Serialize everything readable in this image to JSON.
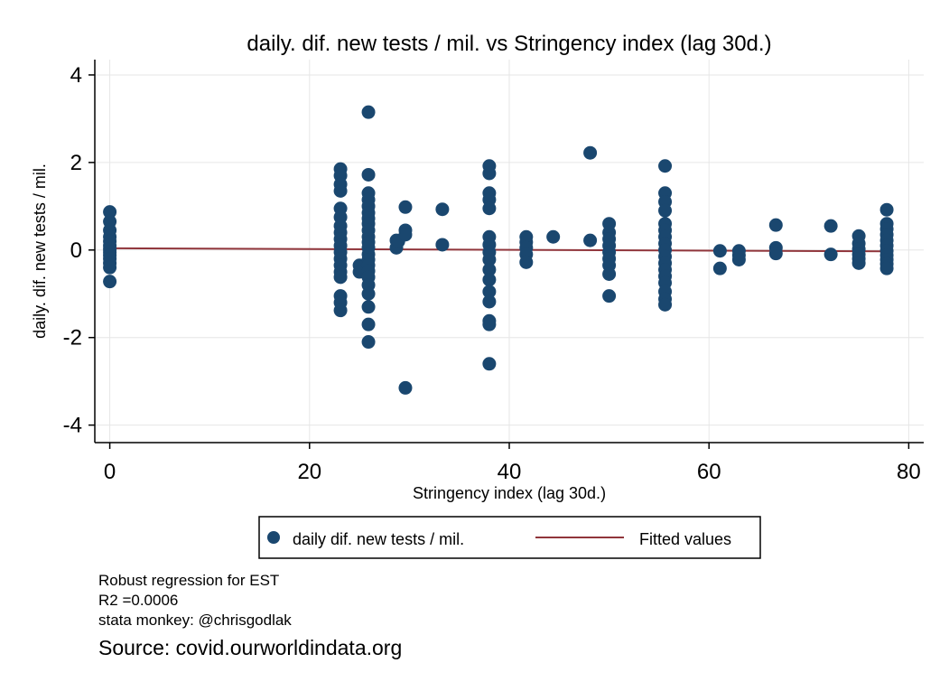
{
  "chart_data": {
    "type": "scatter",
    "title": "daily. dif. new tests / mil. vs Stringency index (lag 30d.)",
    "xlabel": "Stringency index (lag 30d.)",
    "ylabel": "daily. dif. new tests / mil.",
    "xlim": [
      -1.5,
      81.5
    ],
    "ylim": [
      -4.4,
      4.35
    ],
    "xticks": [
      0,
      20,
      40,
      60,
      80
    ],
    "yticks": [
      -4,
      -2,
      0,
      2,
      4
    ],
    "grid": true,
    "legend_position": "bottom",
    "colors": {
      "points": "#1a476f",
      "fit": "#90353b",
      "grid": "#e6e6e6"
    },
    "series": [
      {
        "name": "daily dif. new tests / mil.",
        "kind": "scatter",
        "points": [
          [
            0,
            0.87
          ],
          [
            0,
            0.65
          ],
          [
            0,
            0.45
          ],
          [
            0,
            0.3
          ],
          [
            0,
            0.2
          ],
          [
            0,
            0.1
          ],
          [
            0,
            0.02
          ],
          [
            0,
            -0.05
          ],
          [
            0,
            -0.12
          ],
          [
            0,
            -0.2
          ],
          [
            0,
            -0.3
          ],
          [
            0,
            -0.4
          ],
          [
            0,
            -0.72
          ],
          [
            23.1,
            1.85
          ],
          [
            23.1,
            1.7
          ],
          [
            23.1,
            1.5
          ],
          [
            23.1,
            1.35
          ],
          [
            23.1,
            0.95
          ],
          [
            23.1,
            0.75
          ],
          [
            23.1,
            0.55
          ],
          [
            23.1,
            0.4
          ],
          [
            23.1,
            0.25
          ],
          [
            23.1,
            0.1
          ],
          [
            23.1,
            -0.05
          ],
          [
            23.1,
            -0.2
          ],
          [
            23.1,
            -0.35
          ],
          [
            23.1,
            -0.5
          ],
          [
            23.1,
            -0.62
          ],
          [
            23.1,
            -1.05
          ],
          [
            23.1,
            -1.2
          ],
          [
            23.1,
            -1.38
          ],
          [
            25,
            -0.35
          ],
          [
            25,
            -0.5
          ],
          [
            25.9,
            3.15
          ],
          [
            25.9,
            1.72
          ],
          [
            25.9,
            1.3
          ],
          [
            25.9,
            1.15
          ],
          [
            25.9,
            1.0
          ],
          [
            25.9,
            0.85
          ],
          [
            25.9,
            0.72
          ],
          [
            25.9,
            0.6
          ],
          [
            25.9,
            0.45
          ],
          [
            25.9,
            0.3
          ],
          [
            25.9,
            0.18
          ],
          [
            25.9,
            0.05
          ],
          [
            25.9,
            -0.1
          ],
          [
            25.9,
            -0.22
          ],
          [
            25.9,
            -0.35
          ],
          [
            25.9,
            -0.48
          ],
          [
            25.9,
            -0.62
          ],
          [
            25.9,
            -0.8
          ],
          [
            25.9,
            -1.0
          ],
          [
            25.9,
            -1.3
          ],
          [
            25.9,
            -1.7
          ],
          [
            25.9,
            -2.1
          ],
          [
            28.7,
            0.22
          ],
          [
            28.7,
            0.05
          ],
          [
            28.9,
            0.2
          ],
          [
            29.6,
            0.98
          ],
          [
            29.6,
            0.45
          ],
          [
            29.6,
            0.35
          ],
          [
            29.6,
            -3.15
          ],
          [
            33.3,
            0.93
          ],
          [
            33.3,
            0.12
          ],
          [
            38,
            1.92
          ],
          [
            38,
            1.75
          ],
          [
            38,
            1.3
          ],
          [
            38,
            1.15
          ],
          [
            38,
            0.95
          ],
          [
            38,
            0.3
          ],
          [
            38,
            0.12
          ],
          [
            38,
            -0.05
          ],
          [
            38,
            -0.22
          ],
          [
            38,
            -0.45
          ],
          [
            38,
            -0.68
          ],
          [
            38,
            -0.95
          ],
          [
            38,
            -1.18
          ],
          [
            38,
            -1.62
          ],
          [
            38,
            -1.7
          ],
          [
            38,
            -2.6
          ],
          [
            41.7,
            0.3
          ],
          [
            41.7,
            0.18
          ],
          [
            41.7,
            0.05
          ],
          [
            41.7,
            -0.1
          ],
          [
            41.7,
            -0.28
          ],
          [
            44.4,
            0.3
          ],
          [
            48.1,
            2.22
          ],
          [
            48.1,
            0.22
          ],
          [
            50,
            0.6
          ],
          [
            50,
            0.4
          ],
          [
            50,
            0.25
          ],
          [
            50,
            0.1
          ],
          [
            50,
            -0.05
          ],
          [
            50,
            -0.2
          ],
          [
            50,
            -0.35
          ],
          [
            50,
            -0.55
          ],
          [
            50,
            -1.05
          ],
          [
            55.6,
            1.92
          ],
          [
            55.6,
            1.3
          ],
          [
            55.6,
            1.1
          ],
          [
            55.6,
            0.9
          ],
          [
            55.6,
            0.6
          ],
          [
            55.6,
            0.45
          ],
          [
            55.6,
            0.3
          ],
          [
            55.6,
            0.15
          ],
          [
            55.6,
            0.0
          ],
          [
            55.6,
            -0.15
          ],
          [
            55.6,
            -0.3
          ],
          [
            55.6,
            -0.45
          ],
          [
            55.6,
            -0.6
          ],
          [
            55.6,
            -0.75
          ],
          [
            55.6,
            -0.95
          ],
          [
            55.6,
            -1.12
          ],
          [
            55.6,
            -1.25
          ],
          [
            61.1,
            -0.02
          ],
          [
            61.1,
            -0.42
          ],
          [
            63,
            -0.02
          ],
          [
            63,
            -0.12
          ],
          [
            63,
            -0.22
          ],
          [
            66.7,
            0.57
          ],
          [
            66.7,
            0.05
          ],
          [
            66.7,
            -0.08
          ],
          [
            72.2,
            0.55
          ],
          [
            72.2,
            -0.1
          ],
          [
            75,
            0.32
          ],
          [
            75,
            0.15
          ],
          [
            75,
            0.02
          ],
          [
            75,
            -0.1
          ],
          [
            75,
            -0.2
          ],
          [
            75,
            -0.3
          ],
          [
            77.8,
            0.92
          ],
          [
            77.8,
            0.6
          ],
          [
            77.8,
            0.48
          ],
          [
            77.8,
            0.35
          ],
          [
            77.8,
            0.22
          ],
          [
            77.8,
            0.1
          ],
          [
            77.8,
            -0.02
          ],
          [
            77.8,
            -0.12
          ],
          [
            77.8,
            -0.22
          ],
          [
            77.8,
            -0.32
          ],
          [
            77.8,
            -0.42
          ]
        ]
      },
      {
        "name": "Fitted values",
        "kind": "line",
        "points": [
          [
            0,
            0.04
          ],
          [
            77.8,
            -0.03
          ]
        ]
      }
    ]
  },
  "notes": {
    "line1": "Robust regression for EST",
    "line2": "R2 =0.0006",
    "line3": "stata monkey: @chrisgodlak"
  },
  "source": "Source: covid.ourworldindata.org"
}
